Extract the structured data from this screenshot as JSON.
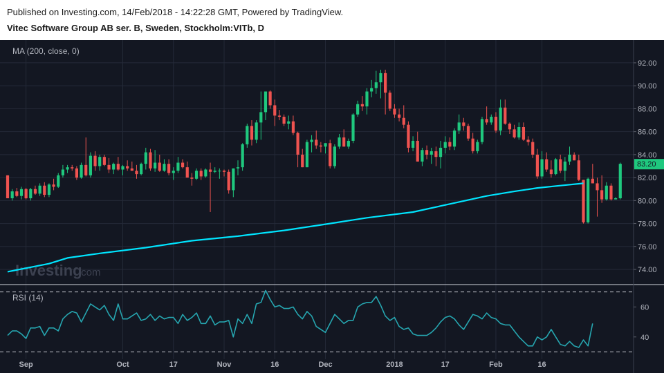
{
  "header": {
    "published": "Published on Investing.com, 14/Feb/2018 - 14:22:28 GMT, Powered by TradingView.",
    "symbol": "Vitec Software Group AB ser. B, Sweden, Stockholm:VITb, D"
  },
  "watermark": {
    "brand": "Investing",
    "suffix": ".com"
  },
  "colors": {
    "background": "#131722",
    "grid": "#242a38",
    "up": "#26a69a",
    "up_body": "#1fc87e",
    "down": "#ef5350",
    "ma": "#00e5ff",
    "rsi": "#26a6b0",
    "text": "#b2b5be",
    "price_tag_bg": "#1fc87e"
  },
  "chart_data": [
    {
      "type": "candlestick",
      "title": "Vitec Software Group AB ser. B, Sweden, Stockholm:VITb, D",
      "indicator_label": "MA (200, close, 0)",
      "ylim": [
        72.8,
        93.5
      ],
      "y_ticks": [
        "92.00",
        "90.00",
        "88.00",
        "86.00",
        "84.00",
        "82.00",
        "80.00",
        "78.00",
        "76.00",
        "74.00"
      ],
      "last_price_label": "83.20",
      "last_price": 83.2,
      "x_ticks": [
        {
          "label": "Sep",
          "index": 4
        },
        {
          "label": "Oct",
          "index": 25
        },
        {
          "label": "17",
          "index": 36
        },
        {
          "label": "Nov",
          "index": 47
        },
        {
          "label": "16",
          "index": 58
        },
        {
          "label": "Dec",
          "index": 69
        },
        {
          "label": "2018",
          "index": 84
        },
        {
          "label": "17",
          "index": 95
        },
        {
          "label": "Feb",
          "index": 106
        },
        {
          "label": "16",
          "index": 116
        }
      ],
      "candles": [
        [
          82.2,
          82.2,
          80.2,
          80.2
        ],
        [
          80.2,
          81.0,
          80.0,
          80.8
        ],
        [
          80.8,
          81.1,
          80.3,
          80.4
        ],
        [
          80.4,
          81.2,
          80.1,
          81.0
        ],
        [
          81.0,
          81.1,
          80.1,
          80.2
        ],
        [
          80.2,
          81.1,
          80.0,
          81.0
        ],
        [
          81.0,
          81.3,
          80.5,
          80.6
        ],
        [
          80.6,
          81.5,
          80.4,
          81.3
        ],
        [
          81.3,
          81.6,
          80.3,
          80.5
        ],
        [
          80.5,
          81.5,
          80.3,
          81.4
        ],
        [
          81.4,
          81.9,
          80.9,
          81.2
        ],
        [
          81.2,
          82.4,
          81.1,
          82.2
        ],
        [
          82.2,
          83.1,
          82.0,
          82.7
        ],
        [
          82.7,
          83.1,
          82.4,
          82.9
        ],
        [
          82.9,
          83.1,
          82.6,
          82.8
        ],
        [
          82.8,
          83.0,
          81.8,
          82.0
        ],
        [
          82.0,
          83.3,
          81.9,
          83.1
        ],
        [
          83.1,
          85.5,
          82.1,
          82.2
        ],
        [
          82.2,
          84.2,
          82.0,
          83.9
        ],
        [
          83.9,
          84.3,
          82.6,
          83.0
        ],
        [
          83.0,
          84.0,
          82.6,
          83.8
        ],
        [
          83.8,
          84.0,
          83.0,
          83.1
        ],
        [
          83.1,
          83.7,
          82.4,
          82.7
        ],
        [
          82.7,
          83.3,
          82.3,
          83.2
        ],
        [
          83.2,
          83.8,
          82.6,
          82.7
        ],
        [
          82.7,
          83.1,
          82.2,
          83.0
        ],
        [
          83.0,
          83.5,
          82.6,
          82.8
        ],
        [
          82.8,
          83.4,
          82.6,
          82.6
        ],
        [
          82.6,
          83.1,
          81.9,
          82.3
        ],
        [
          82.3,
          83.3,
          82.2,
          83.2
        ],
        [
          83.2,
          84.6,
          82.7,
          84.2
        ],
        [
          84.2,
          84.5,
          82.6,
          82.8
        ],
        [
          82.8,
          84.4,
          82.5,
          83.3
        ],
        [
          83.3,
          84.0,
          82.5,
          82.6
        ],
        [
          82.6,
          83.6,
          82.5,
          83.2
        ],
        [
          83.2,
          83.6,
          82.2,
          82.4
        ],
        [
          82.4,
          82.9,
          81.8,
          82.6
        ],
        [
          82.6,
          83.8,
          82.4,
          83.3
        ],
        [
          83.3,
          83.6,
          82.8,
          82.9
        ],
        [
          82.9,
          83.4,
          82.0,
          82.0
        ],
        [
          82.0,
          82.4,
          81.3,
          81.9
        ],
        [
          81.9,
          82.8,
          81.8,
          82.6
        ],
        [
          82.6,
          82.8,
          81.8,
          82.1
        ],
        [
          82.1,
          82.8,
          82.0,
          82.7
        ],
        [
          82.7,
          83.3,
          79.0,
          82.5
        ],
        [
          82.5,
          82.9,
          82.4,
          82.6
        ],
        [
          82.6,
          82.8,
          81.9,
          82.6
        ],
        [
          82.6,
          82.7,
          82.1,
          82.5
        ],
        [
          82.5,
          82.7,
          80.6,
          80.9
        ],
        [
          80.9,
          82.8,
          80.3,
          82.8
        ],
        [
          82.8,
          83.5,
          82.2,
          82.9
        ],
        [
          82.9,
          85.0,
          82.6,
          84.9
        ],
        [
          84.9,
          86.7,
          84.6,
          86.5
        ],
        [
          86.5,
          87.0,
          84.8,
          85.3
        ],
        [
          85.3,
          87.0,
          85.0,
          86.8
        ],
        [
          86.8,
          89.5,
          85.3,
          87.7
        ],
        [
          87.7,
          89.5,
          87.0,
          89.5
        ],
        [
          89.5,
          89.6,
          88.0,
          88.3
        ],
        [
          88.3,
          88.8,
          86.5,
          87.4
        ],
        [
          87.4,
          87.9,
          87.0,
          87.3
        ],
        [
          87.3,
          87.5,
          86.5,
          86.7
        ],
        [
          86.7,
          87.4,
          86.2,
          86.9
        ],
        [
          86.9,
          87.4,
          85.7,
          85.9
        ],
        [
          85.9,
          86.0,
          82.9,
          84.0
        ],
        [
          84.0,
          84.5,
          82.9,
          82.9
        ],
        [
          82.9,
          85.3,
          82.9,
          85.1
        ],
        [
          85.1,
          85.7,
          84.2,
          85.3
        ],
        [
          85.3,
          86.1,
          84.5,
          84.8
        ],
        [
          84.8,
          85.1,
          84.2,
          84.7
        ],
        [
          84.7,
          85.0,
          84.1,
          85.0
        ],
        [
          85.0,
          85.3,
          82.8,
          83.0
        ],
        [
          83.0,
          84.9,
          82.8,
          84.7
        ],
        [
          84.7,
          85.8,
          84.5,
          85.5
        ],
        [
          85.5,
          86.2,
          84.7,
          84.7
        ],
        [
          84.7,
          85.4,
          84.5,
          85.2
        ],
        [
          85.2,
          87.6,
          85.0,
          87.5
        ],
        [
          87.5,
          88.7,
          87.3,
          88.4
        ],
        [
          88.4,
          89.1,
          87.8,
          88.2
        ],
        [
          88.2,
          89.8,
          87.5,
          89.5
        ],
        [
          89.5,
          90.5,
          89.0,
          89.8
        ],
        [
          89.8,
          91.3,
          89.3,
          90.3
        ],
        [
          90.3,
          91.4,
          88.9,
          91.1
        ],
        [
          91.1,
          91.4,
          87.5,
          89.4
        ],
        [
          89.4,
          89.6,
          87.8,
          88.0
        ],
        [
          88.0,
          88.4,
          87.2,
          87.5
        ],
        [
          87.5,
          88.0,
          86.9,
          87.2
        ],
        [
          87.2,
          88.3,
          86.3,
          86.6
        ],
        [
          86.6,
          86.9,
          84.2,
          84.6
        ],
        [
          84.6,
          85.6,
          84.3,
          85.2
        ],
        [
          85.2,
          86.0,
          83.4,
          83.4
        ],
        [
          83.4,
          84.6,
          83.0,
          84.4
        ],
        [
          84.4,
          84.8,
          83.6,
          84.0
        ],
        [
          84.0,
          84.6,
          83.2,
          84.3
        ],
        [
          84.3,
          84.7,
          83.0,
          83.8
        ],
        [
          83.8,
          85.2,
          82.8,
          84.6
        ],
        [
          84.6,
          85.6,
          84.1,
          85.1
        ],
        [
          85.1,
          85.5,
          84.4,
          84.7
        ],
        [
          84.7,
          86.3,
          84.4,
          86.1
        ],
        [
          86.1,
          87.5,
          85.8,
          86.8
        ],
        [
          86.8,
          87.2,
          86.1,
          86.5
        ],
        [
          86.5,
          86.7,
          85.2,
          85.4
        ],
        [
          85.4,
          85.9,
          84.1,
          84.3
        ],
        [
          84.3,
          85.3,
          84.1,
          85.1
        ],
        [
          85.1,
          87.3,
          84.9,
          87.1
        ],
        [
          87.1,
          88.2,
          86.6,
          86.8
        ],
        [
          86.8,
          87.5,
          86.6,
          87.3
        ],
        [
          87.3,
          87.7,
          85.9,
          86.1
        ],
        [
          86.1,
          88.8,
          85.7,
          88.1
        ],
        [
          88.1,
          88.8,
          86.6,
          86.7
        ],
        [
          86.7,
          86.8,
          85.8,
          86.2
        ],
        [
          86.2,
          86.6,
          85.4,
          85.5
        ],
        [
          85.5,
          86.8,
          85.3,
          86.4
        ],
        [
          86.4,
          86.8,
          85.2,
          85.3
        ],
        [
          85.3,
          85.6,
          84.8,
          85.1
        ],
        [
          85.1,
          85.4,
          83.7,
          84.0
        ],
        [
          84.0,
          84.5,
          81.9,
          82.1
        ],
        [
          82.1,
          84.3,
          81.9,
          83.6
        ],
        [
          83.6,
          84.2,
          82.5,
          82.7
        ],
        [
          82.7,
          83.5,
          82.0,
          82.3
        ],
        [
          82.3,
          83.7,
          82.2,
          83.6
        ],
        [
          83.6,
          84.0,
          82.4,
          82.6
        ],
        [
          82.6,
          83.8,
          81.7,
          83.4
        ],
        [
          83.4,
          84.7,
          83.1,
          84.0
        ],
        [
          84.0,
          84.2,
          83.5,
          83.5
        ],
        [
          83.5,
          84.0,
          81.7,
          81.8
        ],
        [
          81.8,
          81.8,
          78.0,
          78.1
        ],
        [
          78.1,
          82.0,
          78.0,
          81.9
        ],
        [
          81.9,
          83.2,
          81.5,
          81.5
        ],
        [
          81.5,
          82.0,
          78.6,
          80.9
        ],
        [
          80.9,
          82.2,
          79.8,
          80.1
        ],
        [
          80.1,
          81.6,
          80.0,
          81.3
        ],
        [
          81.3,
          81.5,
          80.0,
          80.1
        ],
        [
          80.1,
          80.3,
          80.1,
          80.2
        ],
        [
          80.2,
          83.3,
          80.1,
          83.2
        ]
      ],
      "ma_series": [
        {
          "i": 0,
          "v": 73.8
        },
        {
          "i": 9,
          "v": 74.5
        },
        {
          "i": 13,
          "v": 75.0
        },
        {
          "i": 20,
          "v": 75.4
        },
        {
          "i": 30,
          "v": 75.9
        },
        {
          "i": 40,
          "v": 76.5
        },
        {
          "i": 50,
          "v": 76.9
        },
        {
          "i": 60,
          "v": 77.4
        },
        {
          "i": 70,
          "v": 78.0
        },
        {
          "i": 78,
          "v": 78.5
        },
        {
          "i": 88,
          "v": 79.0
        },
        {
          "i": 96,
          "v": 79.7
        },
        {
          "i": 104,
          "v": 80.4
        },
        {
          "i": 110,
          "v": 80.8
        },
        {
          "i": 115,
          "v": 81.1
        },
        {
          "i": 120,
          "v": 81.3
        },
        {
          "i": 125,
          "v": 81.5
        }
      ]
    },
    {
      "type": "line",
      "indicator_label": "RSI (14)",
      "ylim": [
        27,
        74
      ],
      "y_ticks": [
        "60",
        "40"
      ],
      "bands": [
        70,
        30
      ],
      "values": [
        41,
        44,
        44,
        42,
        39,
        46,
        46,
        47,
        41,
        46,
        46,
        44,
        52,
        55,
        57,
        56,
        50,
        56,
        62,
        60,
        58,
        61,
        55,
        51,
        62,
        52,
        52,
        54,
        56,
        51,
        52,
        55,
        51,
        54,
        52,
        53,
        53,
        49,
        55,
        51,
        53,
        56,
        49,
        49,
        54,
        48,
        50,
        50,
        51,
        40,
        52,
        49,
        55,
        49,
        62,
        63,
        71,
        65,
        60,
        61,
        59,
        59,
        60,
        55,
        52,
        57,
        54,
        47,
        45,
        43,
        49,
        55,
        52,
        49,
        51,
        51,
        60,
        62,
        63,
        63,
        67,
        61,
        54,
        51,
        53,
        47,
        45,
        46,
        42,
        41,
        41,
        41,
        43,
        46,
        50,
        53,
        54,
        52,
        48,
        45,
        50,
        55,
        54,
        52,
        56,
        53,
        52,
        49,
        48,
        48,
        44,
        40,
        37,
        34,
        34,
        40,
        38,
        40,
        45,
        40,
        35,
        34,
        37,
        34,
        33,
        38,
        34,
        49
      ]
    }
  ]
}
